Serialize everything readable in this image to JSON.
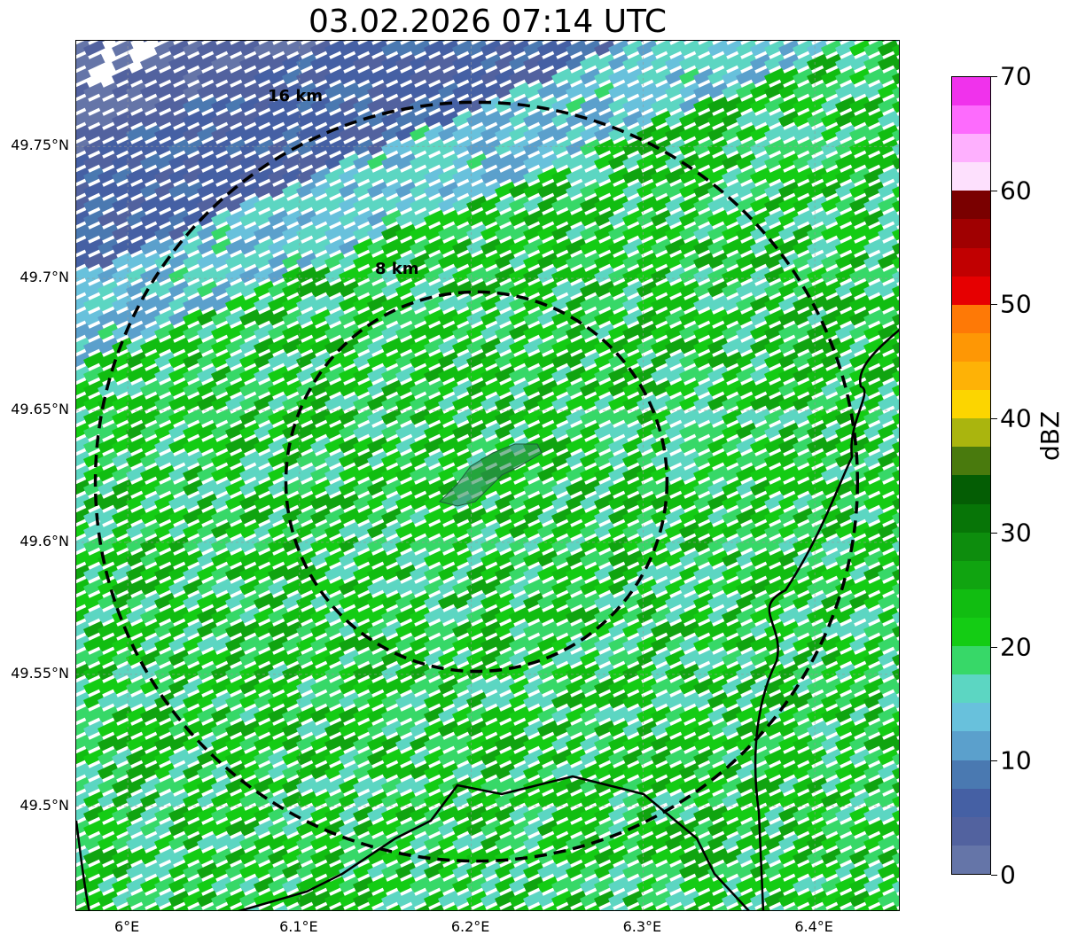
{
  "title": "03.02.2026 07:14 UTC",
  "map": {
    "lon_range": [
      5.97,
      6.45
    ],
    "lat_range": [
      49.46,
      49.79
    ],
    "x_ticks": [
      "6°E",
      "6.1°E",
      "6.2°E",
      "6.3°E",
      "6.4°E"
    ],
    "x_tick_values": [
      6.0,
      6.1,
      6.2,
      6.3,
      6.4
    ],
    "y_ticks": [
      "49.75°N",
      "49.7°N",
      "49.65°N",
      "49.6°N",
      "49.55°N",
      "49.5°N"
    ],
    "y_tick_values": [
      49.75,
      49.7,
      49.65,
      49.6,
      49.55,
      49.5
    ],
    "center": {
      "lon": 6.203,
      "lat": 49.623
    },
    "rings": [
      {
        "label": "8 km",
        "radius_km": 8
      },
      {
        "label": "16 km",
        "radius_km": 16
      }
    ],
    "gridlines": true
  },
  "colorbar": {
    "label": "dBZ",
    "min": 0,
    "max": 70,
    "step": 2.5,
    "ticks": [
      "0",
      "10",
      "20",
      "30",
      "40",
      "50",
      "60",
      "70"
    ],
    "tick_values": [
      0,
      10,
      20,
      30,
      40,
      50,
      60,
      70
    ],
    "colors": [
      "#6575a8",
      "#52629f",
      "#4560a4",
      "#4a79b1",
      "#5ba0cc",
      "#68c1dc",
      "#5cd6c2",
      "#37d868",
      "#14cc14",
      "#11bd11",
      "#10a410",
      "#0d8d0d",
      "#077507",
      "#045d04",
      "#497a0d",
      "#aab50e",
      "#fcd500",
      "#feb206",
      "#fe9705",
      "#fe7906",
      "#e60001",
      "#c10001",
      "#a00001",
      "#7a0000",
      "#fde0fd",
      "#feb0fe",
      "#fd6bfd",
      "#f032ec"
    ]
  }
}
